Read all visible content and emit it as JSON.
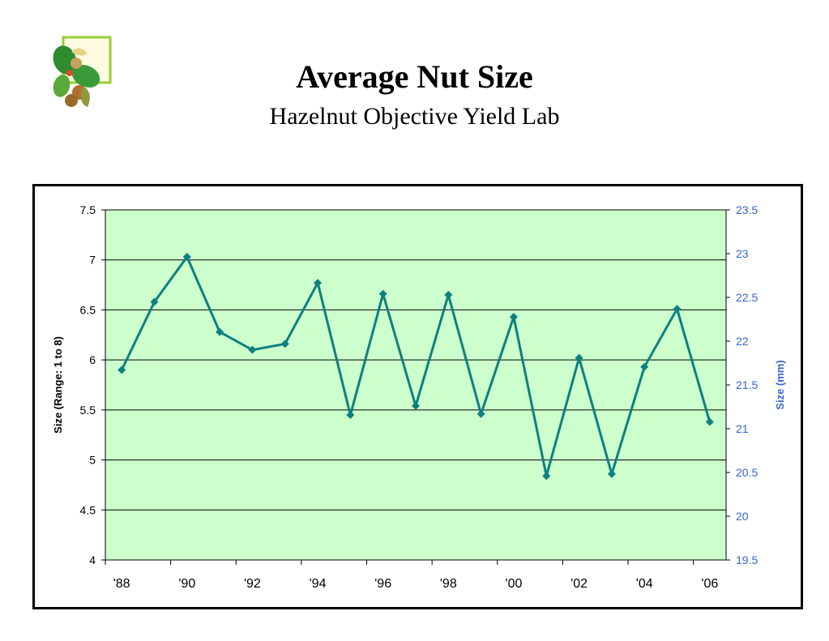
{
  "header": {
    "title": "Average Nut Size",
    "subtitle": "Hazelnut Objective Yield Lab",
    "logo_icon": "hazelnut-cluster-icon"
  },
  "chart_data": {
    "type": "line",
    "title": "",
    "ylabel": "Size (Range: 1 to 8)",
    "y2label": "Size (mm)",
    "ylim": [
      4,
      7.5
    ],
    "y_ticks": [
      "7.5",
      "7",
      "6.5",
      "6",
      "5.5",
      "5",
      "4.5",
      "4"
    ],
    "y2lim": [
      19.5,
      23.5
    ],
    "y2_ticks": [
      "23.5",
      "23",
      "22.5",
      "22",
      "21.5",
      "21",
      "20.5",
      "20",
      "19.5"
    ],
    "x_tick_labels": [
      "'88",
      "'90",
      "'92",
      "'94",
      "'96",
      "'98",
      "'00",
      "'02",
      "'04",
      "'06"
    ],
    "x": [
      "1988",
      "1989",
      "1990",
      "1991",
      "1992",
      "1993",
      "1994",
      "1995",
      "1996",
      "1997",
      "1998",
      "1999",
      "2000",
      "2001",
      "2002",
      "2003",
      "2004",
      "2005",
      "2006"
    ],
    "series": [
      {
        "values": [
          5.9,
          6.58,
          7.03,
          6.28,
          6.1,
          6.16,
          6.77,
          5.45,
          6.66,
          5.54,
          6.65,
          5.46,
          6.43,
          4.84,
          6.02,
          4.86,
          5.93,
          6.51,
          5.38
        ]
      }
    ],
    "grid": true,
    "colors": {
      "plot_background": "#ccffcc",
      "line": "#0d8080",
      "right_axis": "#3366cc",
      "gridline": "#000000"
    }
  }
}
